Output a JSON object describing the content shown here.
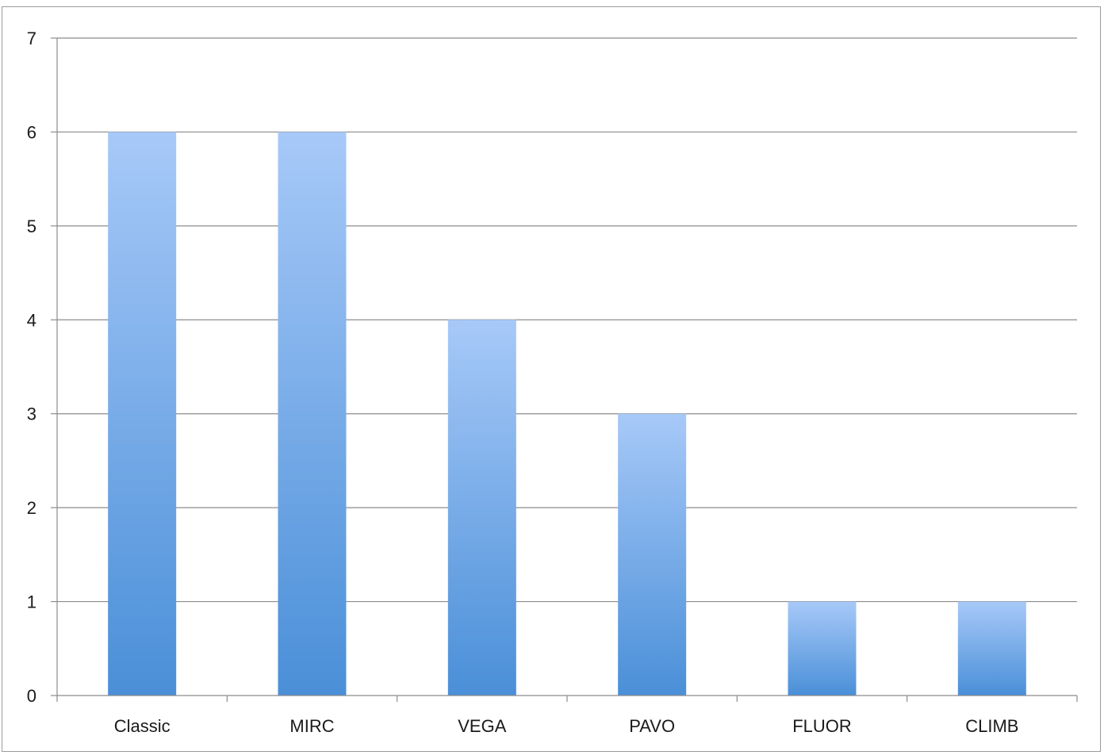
{
  "chart_data": {
    "type": "bar",
    "categories": [
      "Classic",
      "MIRC",
      "VEGA",
      "PAVO",
      "FLUOR",
      "CLIMB"
    ],
    "series": [
      {
        "values": [
          6,
          6,
          4,
          3,
          1,
          1
        ]
      }
    ],
    "ylim": [
      0,
      7
    ],
    "yticks": [
      "0",
      "1",
      "2",
      "3",
      "4",
      "5",
      "6",
      "7"
    ],
    "grid": true,
    "legend": "none",
    "colors": {
      "bar_top": "#a7c9f8",
      "bar_bottom": "#4a8fd8",
      "gridline": "#8c8c8c",
      "text": "#1a1a1a"
    }
  }
}
